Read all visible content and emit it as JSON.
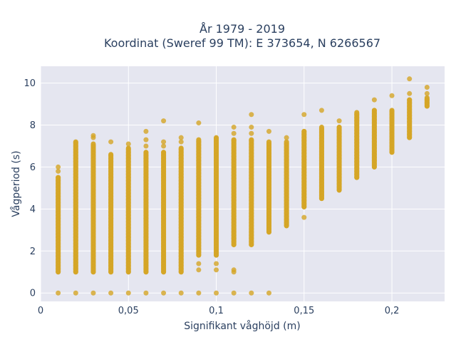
{
  "chart_data": {
    "type": "scatter",
    "title_lines": [
      "År 1979 - 2019",
      "Koordinat (Sweref 99 TM): E 373654, N 6266567"
    ],
    "xlabel": "Signifikant våghöjd (m)",
    "ylabel": "Vågperiod (s)",
    "xlim": [
      0,
      0.23
    ],
    "ylim": [
      -0.4,
      10.8
    ],
    "xticks": [
      0,
      0.05,
      0.1,
      0.15,
      0.2
    ],
    "xtick_labels": [
      "0",
      "0,05",
      "0,1",
      "0,15",
      "0,2"
    ],
    "yticks": [
      0,
      2,
      4,
      6,
      8,
      10
    ],
    "ytick_labels": [
      "0",
      "2",
      "4",
      "6",
      "8",
      "10"
    ],
    "grid": true,
    "marker_color": "#d4a526",
    "plot_background": "#e5e6f0",
    "columns": [
      {
        "x": 0.01,
        "y_min": 1.0,
        "y_max": 5.5,
        "zero": true,
        "outliers": [
          5.8,
          6.0
        ]
      },
      {
        "x": 0.02,
        "y_min": 1.0,
        "y_max": 7.2,
        "zero": true,
        "outliers": []
      },
      {
        "x": 0.03,
        "y_min": 1.0,
        "y_max": 7.1,
        "zero": true,
        "outliers": [
          7.4,
          7.5
        ]
      },
      {
        "x": 0.04,
        "y_min": 1.0,
        "y_max": 6.6,
        "zero": true,
        "outliers": [
          7.2
        ]
      },
      {
        "x": 0.05,
        "y_min": 1.0,
        "y_max": 6.9,
        "zero": true,
        "outliers": [
          7.1
        ]
      },
      {
        "x": 0.06,
        "y_min": 1.0,
        "y_max": 6.7,
        "zero": true,
        "outliers": [
          7.0,
          7.3,
          7.7
        ]
      },
      {
        "x": 0.07,
        "y_min": 1.0,
        "y_max": 6.7,
        "zero": true,
        "outliers": [
          7.0,
          7.2,
          8.2
        ]
      },
      {
        "x": 0.08,
        "y_min": 1.0,
        "y_max": 6.9,
        "zero": true,
        "outliers": [
          7.2,
          7.4
        ]
      },
      {
        "x": 0.09,
        "y_min": 1.8,
        "y_max": 7.3,
        "zero": true,
        "outliers": [
          1.1,
          1.4,
          8.1
        ]
      },
      {
        "x": 0.1,
        "y_min": 1.8,
        "y_max": 7.4,
        "zero": true,
        "outliers": [
          1.1,
          1.4
        ]
      },
      {
        "x": 0.11,
        "y_min": 2.3,
        "y_max": 7.3,
        "zero": true,
        "outliers": [
          1.0,
          1.1,
          7.6,
          7.9
        ]
      },
      {
        "x": 0.12,
        "y_min": 2.3,
        "y_max": 7.3,
        "zero": true,
        "outliers": [
          7.6,
          7.9,
          8.5
        ]
      },
      {
        "x": 0.13,
        "y_min": 2.9,
        "y_max": 7.2,
        "zero": true,
        "outliers": [
          7.7
        ]
      },
      {
        "x": 0.14,
        "y_min": 3.2,
        "y_max": 7.2,
        "zero": false,
        "outliers": [
          7.4
        ]
      },
      {
        "x": 0.15,
        "y_min": 4.1,
        "y_max": 7.7,
        "zero": false,
        "outliers": [
          3.6,
          8.5
        ]
      },
      {
        "x": 0.16,
        "y_min": 4.5,
        "y_max": 7.9,
        "zero": false,
        "outliers": [
          8.7
        ]
      },
      {
        "x": 0.17,
        "y_min": 4.9,
        "y_max": 7.9,
        "zero": false,
        "outliers": [
          8.2
        ]
      },
      {
        "x": 0.18,
        "y_min": 5.5,
        "y_max": 8.6,
        "zero": false,
        "outliers": []
      },
      {
        "x": 0.19,
        "y_min": 6.0,
        "y_max": 8.7,
        "zero": false,
        "outliers": [
          9.2
        ]
      },
      {
        "x": 0.2,
        "y_min": 6.7,
        "y_max": 8.7,
        "zero": false,
        "outliers": [
          9.4
        ]
      },
      {
        "x": 0.21,
        "y_min": 7.4,
        "y_max": 9.2,
        "zero": false,
        "outliers": [
          9.5,
          10.2
        ]
      },
      {
        "x": 0.22,
        "y_min": 8.9,
        "y_max": 9.3,
        "zero": false,
        "outliers": [
          9.5,
          9.8
        ]
      }
    ]
  }
}
